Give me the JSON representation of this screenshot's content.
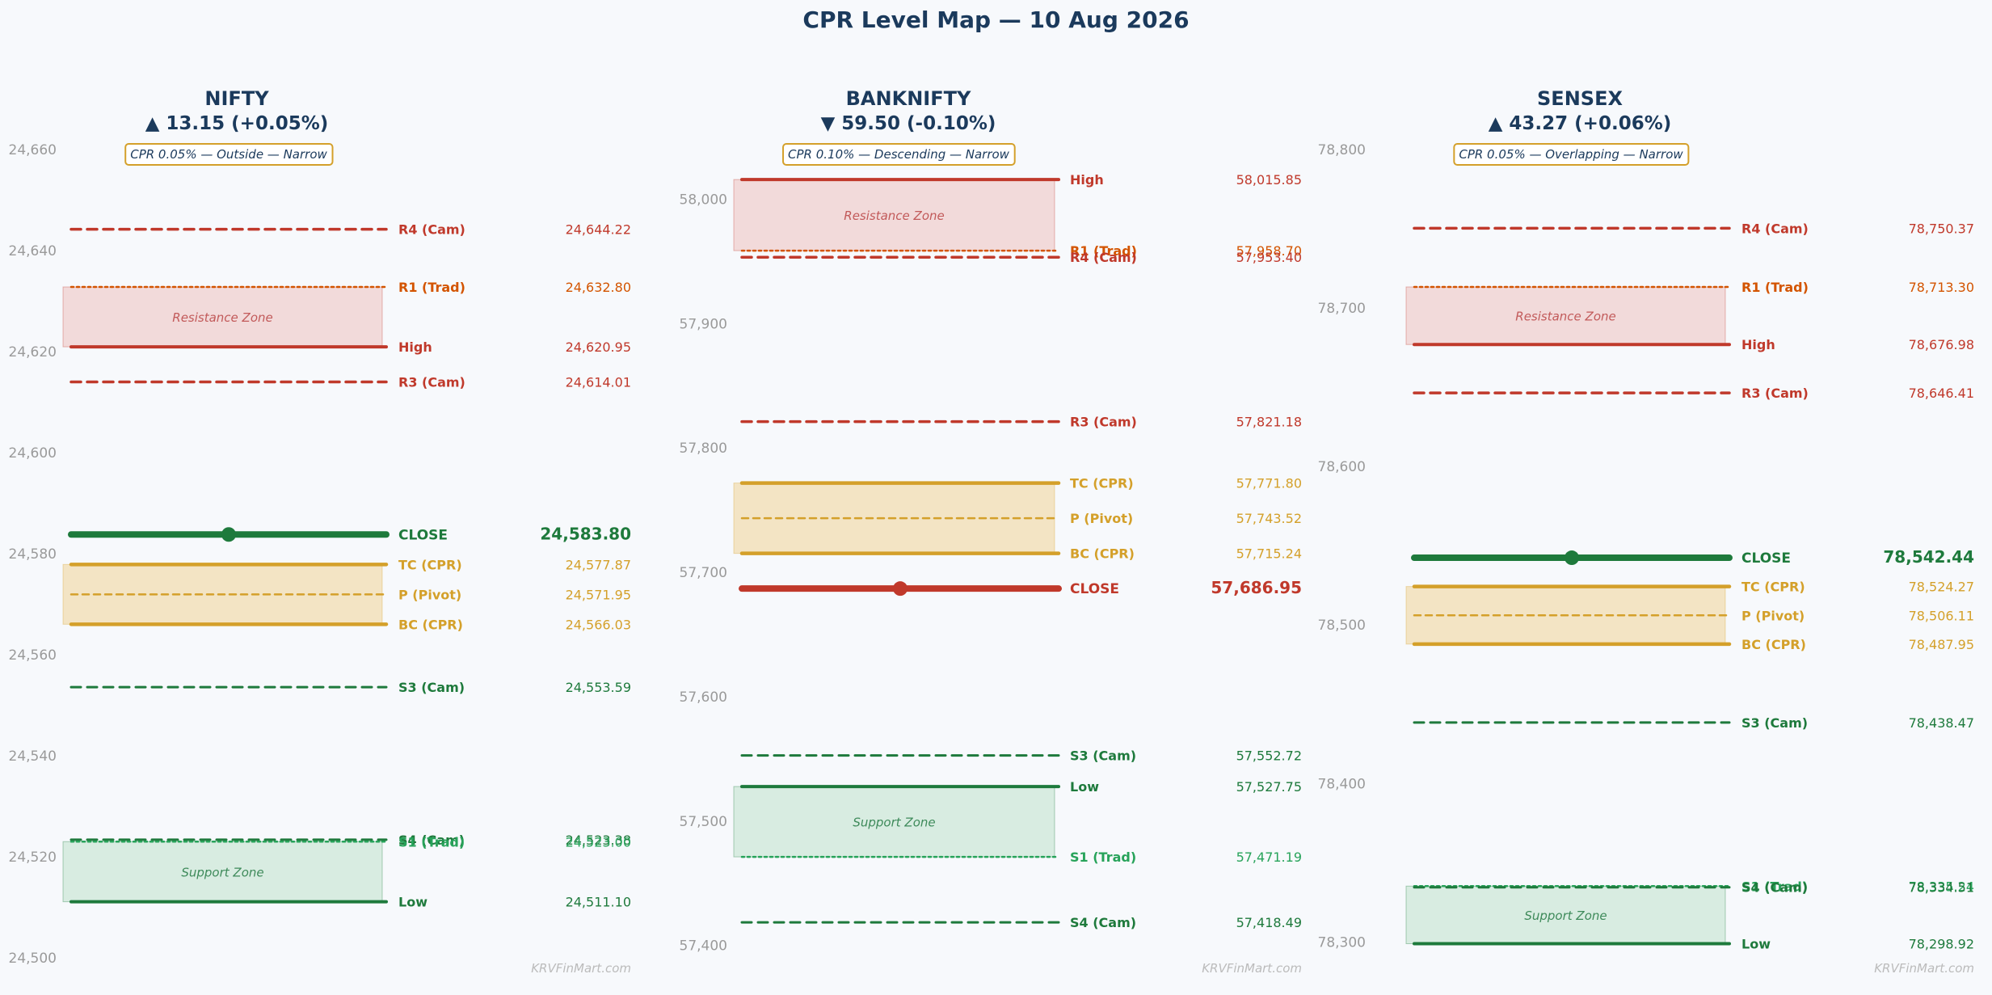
{
  "title": "CPR Level Map — 10 Aug 2026",
  "watermark": "KRVFinMart.com",
  "colors": {
    "resistance": "#c0392b",
    "trad_resistance": "#d35400",
    "cpr": "#d4a02a",
    "support": "#1e7a3c",
    "trad_support": "#27a35a",
    "close_up": "#1e7a3c",
    "close_down": "#c0392b",
    "resistance_zone": "#f2dada",
    "support_zone": "#d8ece1",
    "cpr_zone": "#f3e4c4"
  },
  "chart_data": [
    {
      "type": "level-map",
      "index": "NIFTY",
      "change": "▲ 13.15 (+0.05%)",
      "cpr_note": "CPR 0.05% — Outside — Narrow",
      "ylim": [
        24500,
        24660
      ],
      "yticks": [
        24500,
        24520,
        24540,
        24560,
        24580,
        24600,
        24620,
        24640,
        24660
      ],
      "ytick_labels": [
        "24,500",
        "24,520",
        "24,540",
        "24,560",
        "24,580",
        "24,600",
        "24,620",
        "24,640",
        "24,660"
      ],
      "resistance_zone": {
        "label": "Resistance Zone",
        "from": 24620.95,
        "to": 24632.8
      },
      "support_zone": {
        "label": "Support Zone",
        "from": 24511.1,
        "to": 24523.0
      },
      "cpr_zone": {
        "from": 24566.03,
        "to": 24577.87
      },
      "levels": [
        {
          "name": "R4 (Cam)",
          "value": 24644.22,
          "display": "24,644.22",
          "kind": "camarilla_r"
        },
        {
          "name": "R1 (Trad)",
          "value": 24632.8,
          "display": "24,632.80",
          "kind": "trad_r"
        },
        {
          "name": "High",
          "value": 24620.95,
          "display": "24,620.95",
          "kind": "high"
        },
        {
          "name": "R3 (Cam)",
          "value": 24614.01,
          "display": "24,614.01",
          "kind": "camarilla_r"
        },
        {
          "name": "CLOSE",
          "value": 24583.8,
          "display": "24,583.80",
          "kind": "close_up"
        },
        {
          "name": "TC (CPR)",
          "value": 24577.87,
          "display": "24,577.87",
          "kind": "tc"
        },
        {
          "name": "P (Pivot)",
          "value": 24571.95,
          "display": "24,571.95",
          "kind": "pivot"
        },
        {
          "name": "BC (CPR)",
          "value": 24566.03,
          "display": "24,566.03",
          "kind": "bc"
        },
        {
          "name": "S3 (Cam)",
          "value": 24553.59,
          "display": "24,553.59",
          "kind": "camarilla_s"
        },
        {
          "name": "S4 (Cam)",
          "value": 24523.38,
          "display": "24,523.38",
          "kind": "camarilla_s"
        },
        {
          "name": "S1 (Trad)",
          "value": 24523.0,
          "display": "24,523.00",
          "kind": "trad_s"
        },
        {
          "name": "Low",
          "value": 24511.1,
          "display": "24,511.10",
          "kind": "low"
        }
      ]
    },
    {
      "type": "level-map",
      "index": "BANKNIFTY",
      "change": "▼ 59.50 (-0.10%)",
      "cpr_note": "CPR 0.10% — Descending — Narrow",
      "ylim": [
        57390,
        58040
      ],
      "yticks": [
        57400,
        57500,
        57600,
        57700,
        57800,
        57900,
        58000
      ],
      "ytick_labels": [
        "57,400",
        "57,500",
        "57,600",
        "57,700",
        "57,800",
        "57,900",
        "58,000"
      ],
      "resistance_zone": {
        "label": "Resistance Zone",
        "from": 57958.7,
        "to": 58015.85
      },
      "support_zone": {
        "label": "Support Zone",
        "from": 57471.19,
        "to": 57527.75
      },
      "cpr_zone": {
        "from": 57715.24,
        "to": 57771.8
      },
      "levels": [
        {
          "name": "High",
          "value": 58015.85,
          "display": "58,015.85",
          "kind": "high"
        },
        {
          "name": "R1 (Trad)",
          "value": 57958.7,
          "display": "57,958.70",
          "kind": "trad_r"
        },
        {
          "name": "R4 (Cam)",
          "value": 57953.4,
          "display": "57,953.40",
          "kind": "camarilla_r"
        },
        {
          "name": "R3 (Cam)",
          "value": 57821.18,
          "display": "57,821.18",
          "kind": "camarilla_r"
        },
        {
          "name": "TC (CPR)",
          "value": 57771.8,
          "display": "57,771.80",
          "kind": "tc"
        },
        {
          "name": "P (Pivot)",
          "value": 57743.52,
          "display": "57,743.52",
          "kind": "pivot"
        },
        {
          "name": "BC (CPR)",
          "value": 57715.24,
          "display": "57,715.24",
          "kind": "bc"
        },
        {
          "name": "CLOSE",
          "value": 57686.95,
          "display": "57,686.95",
          "kind": "close_down"
        },
        {
          "name": "S3 (Cam)",
          "value": 57552.72,
          "display": "57,552.72",
          "kind": "camarilla_s"
        },
        {
          "name": "Low",
          "value": 57527.75,
          "display": "57,527.75",
          "kind": "low"
        },
        {
          "name": "S1 (Trad)",
          "value": 57471.19,
          "display": "57,471.19",
          "kind": "trad_s"
        },
        {
          "name": "S4 (Cam)",
          "value": 57418.49,
          "display": "57,418.49",
          "kind": "camarilla_s"
        }
      ]
    },
    {
      "type": "level-map",
      "index": "SENSEX",
      "change": "▲ 43.27 (+0.06%)",
      "cpr_note": "CPR 0.05% — Overlapping — Narrow",
      "ylim": [
        78290,
        78800
      ],
      "yticks": [
        78300,
        78400,
        78500,
        78600,
        78700,
        78800
      ],
      "ytick_labels": [
        "78,300",
        "78,400",
        "78,500",
        "78,600",
        "78,700",
        "78,800"
      ],
      "resistance_zone": {
        "label": "Resistance Zone",
        "from": 78676.98,
        "to": 78713.3
      },
      "support_zone": {
        "label": "Support Zone",
        "from": 78298.92,
        "to": 78335.24
      },
      "cpr_zone": {
        "from": 78487.95,
        "to": 78524.27
      },
      "levels": [
        {
          "name": "R4 (Cam)",
          "value": 78750.37,
          "display": "78,750.37",
          "kind": "camarilla_r"
        },
        {
          "name": "R1 (Trad)",
          "value": 78713.3,
          "display": "78,713.30",
          "kind": "trad_r"
        },
        {
          "name": "High",
          "value": 78676.98,
          "display": "78,676.98",
          "kind": "high"
        },
        {
          "name": "R3 (Cam)",
          "value": 78646.41,
          "display": "78,646.41",
          "kind": "camarilla_r"
        },
        {
          "name": "CLOSE",
          "value": 78542.44,
          "display": "78,542.44",
          "kind": "close_up"
        },
        {
          "name": "TC (CPR)",
          "value": 78524.27,
          "display": "78,524.27",
          "kind": "tc"
        },
        {
          "name": "P (Pivot)",
          "value": 78506.11,
          "display": "78,506.11",
          "kind": "pivot"
        },
        {
          "name": "BC (CPR)",
          "value": 78487.95,
          "display": "78,487.95",
          "kind": "bc"
        },
        {
          "name": "S3 (Cam)",
          "value": 78438.47,
          "display": "78,438.47",
          "kind": "camarilla_s"
        },
        {
          "name": "S1 (Trad)",
          "value": 78335.24,
          "display": "78,335.24",
          "kind": "trad_s"
        },
        {
          "name": "S4 (Cam)",
          "value": 78334.51,
          "display": "78,334.51",
          "kind": "camarilla_s"
        },
        {
          "name": "Low",
          "value": 78298.92,
          "display": "78,298.92",
          "kind": "low"
        }
      ]
    }
  ]
}
